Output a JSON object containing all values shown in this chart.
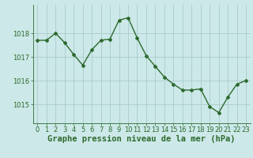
{
  "x": [
    0,
    1,
    2,
    3,
    4,
    5,
    6,
    7,
    8,
    9,
    10,
    11,
    12,
    13,
    14,
    15,
    16,
    17,
    18,
    19,
    20,
    21,
    22,
    23
  ],
  "y": [
    1017.7,
    1017.7,
    1018.0,
    1017.6,
    1017.1,
    1016.65,
    1017.3,
    1017.7,
    1017.75,
    1018.55,
    1018.65,
    1017.8,
    1017.05,
    1016.6,
    1016.15,
    1015.85,
    1015.6,
    1015.6,
    1015.65,
    1014.9,
    1014.65,
    1015.3,
    1015.85,
    1016.0
  ],
  "line_color": "#2d6a2d",
  "marker": "D",
  "marker_size": 2.0,
  "line_width": 1.0,
  "background_color": "#cce8e8",
  "grid_color": "#aacccc",
  "xlabel": "Graphe pression niveau de la mer (hPa)",
  "xlabel_fontsize": 7.5,
  "tick_color": "#2d6a2d",
  "tick_fontsize": 6.0,
  "ylim": [
    1014.2,
    1019.2
  ],
  "yticks": [
    1015,
    1016,
    1017,
    1018
  ],
  "xlim": [
    -0.5,
    23.5
  ],
  "xticks": [
    0,
    1,
    2,
    3,
    4,
    5,
    6,
    7,
    8,
    9,
    10,
    11,
    12,
    13,
    14,
    15,
    16,
    17,
    18,
    19,
    20,
    21,
    22,
    23
  ]
}
